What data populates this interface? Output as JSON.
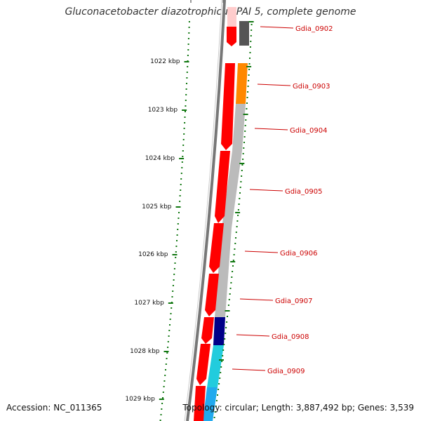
{
  "title": "Gluconacetobacter diazotrophicus PAI 5, complete genome",
  "footer": {
    "accession": "Accession: NC_011365",
    "summary": "Topology: circular; Length: 3,887,492 bp; Genes: 3,539"
  },
  "colors": {
    "cds_strand": "#ff0000",
    "backbone": "#777777",
    "tick": "#117711",
    "gene_label": "#cc0000",
    "gray_dark": "#555555",
    "gray_light": "#bbbbbb",
    "orange": "#ff8800",
    "navy": "#000088",
    "cyan": "#22ccdd",
    "sky": "#22aaee",
    "pink": "#ffcccc"
  },
  "scale_labels": [
    "1022 kbp",
    "1023 kbp",
    "1024 kbp",
    "1025 kbp",
    "1026 kbp",
    "1027 kbp",
    "1028 kbp",
    "1029 kbp"
  ],
  "genes": [
    {
      "label": "Gdia_0902",
      "color_key": "gray_dark"
    },
    {
      "label": "Gdia_0903",
      "color_key": "orange"
    },
    {
      "label": "Gdia_0904",
      "color_key": "gray_light"
    },
    {
      "label": "Gdia_0905",
      "color_key": "gray_light"
    },
    {
      "label": "Gdia_0906",
      "color_key": "gray_light"
    },
    {
      "label": "Gdia_0907",
      "color_key": "gray_light"
    },
    {
      "label": "Gdia_0908",
      "color_key": "navy"
    },
    {
      "label": "Gdia_0909",
      "color_key": "cyan"
    }
  ]
}
